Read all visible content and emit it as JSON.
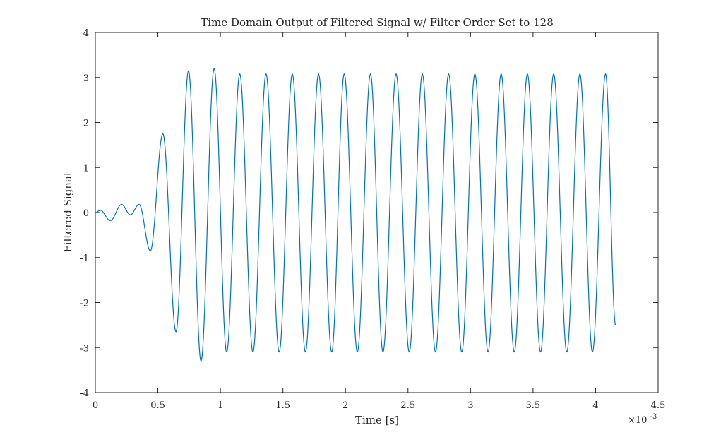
{
  "chart_data": {
    "type": "line",
    "title": "Time Domain Output of Filtered Signal w/ Filter Order Set to 128",
    "xlabel": "Time [s]",
    "ylabel": "Filtered Signal",
    "x_exponent_base": "×10",
    "x_exponent_power": "-3",
    "xlim": [
      0,
      4.5
    ],
    "ylim": [
      -4,
      4
    ],
    "x_ticks": [
      0,
      0.5,
      1,
      1.5,
      2,
      2.5,
      3,
      3.5,
      4,
      4.5
    ],
    "x_tick_labels": [
      "0",
      "0.5",
      "1",
      "1.5",
      "2",
      "2.5",
      "3",
      "3.5",
      "4",
      "4.5"
    ],
    "y_ticks": [
      -4,
      -3,
      -2,
      -1,
      0,
      1,
      2,
      3,
      4
    ],
    "y_tick_labels": [
      "-4",
      "-3",
      "-2",
      "-1",
      "0",
      "1",
      "2",
      "3",
      "4"
    ],
    "grid": false,
    "line_color": "#0072BD",
    "x_unit_scale": "1e-3 s",
    "series": [
      {
        "x": [
          0,
          0.04,
          0.12,
          0.21,
          0.28,
          0.35,
          0.44,
          0.54,
          0.645,
          0.745,
          0.845,
          0.95,
          1.05,
          1.155,
          1.26,
          1.365,
          1.47,
          1.575,
          1.68,
          1.785,
          1.89,
          1.99,
          2.095,
          2.2,
          2.3,
          2.405,
          2.51,
          2.615,
          2.72,
          2.825,
          2.93,
          3.035,
          3.14,
          3.245,
          3.35,
          3.455,
          3.56,
          3.665,
          3.77,
          3.875,
          3.975,
          4.08,
          4.16
        ],
        "y": [
          0,
          0.05,
          -0.18,
          0.18,
          -0.05,
          0.18,
          -0.85,
          1.75,
          -2.65,
          3.15,
          -3.3,
          3.2,
          -3.1,
          3.08,
          -3.1,
          3.08,
          -3.1,
          3.08,
          -3.1,
          3.08,
          -3.1,
          3.08,
          -3.1,
          3.08,
          -3.1,
          3.08,
          -3.1,
          3.08,
          -3.1,
          3.08,
          -3.1,
          3.08,
          -3.1,
          3.08,
          -3.1,
          3.08,
          -3.1,
          3.08,
          -3.1,
          3.08,
          -3.1,
          3.08,
          -2.5
        ]
      }
    ]
  }
}
